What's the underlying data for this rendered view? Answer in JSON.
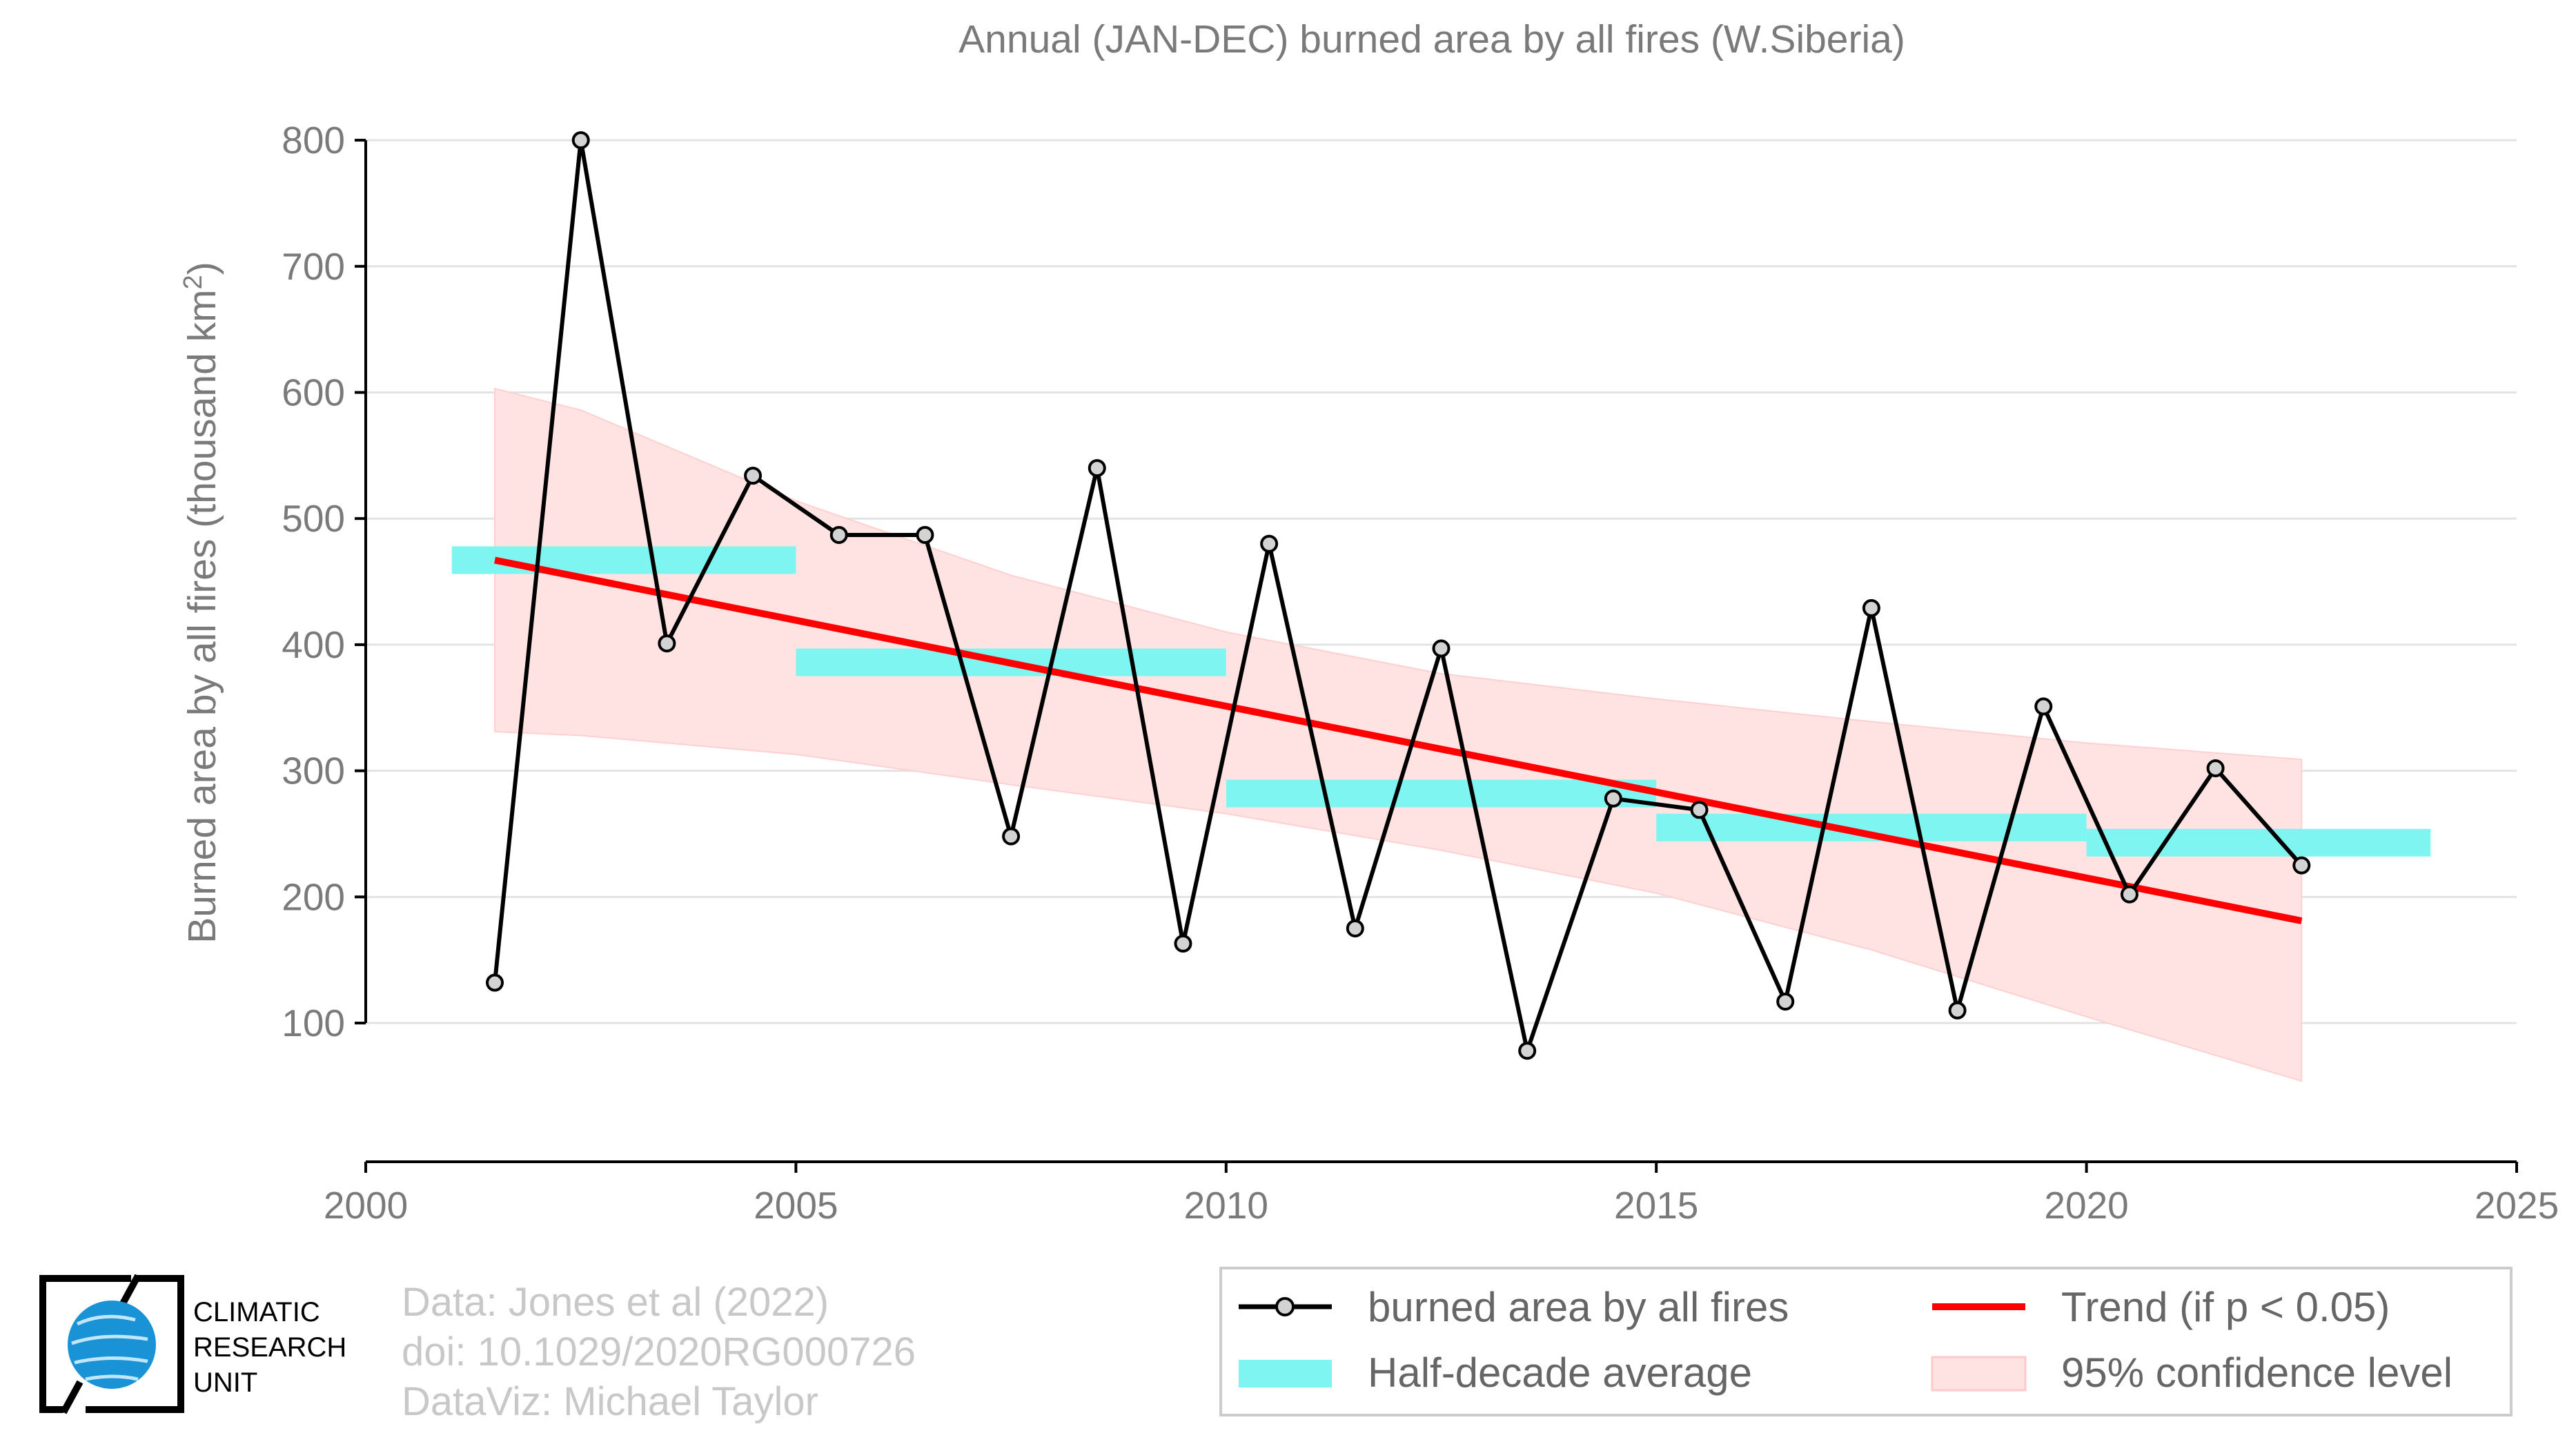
{
  "chart_data": {
    "type": "line",
    "title": "Annual (JAN-DEC) burned area by all fires (W.Siberia)",
    "ylabel_main": "Burned area by all fires (thousand km",
    "ylabel_sup": "2",
    "ylabel_close": ")",
    "xlabel": "",
    "xlim": [
      2000,
      2025
    ],
    "ylim": [
      -10,
      840
    ],
    "x_ticks": [
      2000,
      2005,
      2010,
      2015,
      2020,
      2025
    ],
    "y_ticks": [
      100,
      200,
      300,
      400,
      500,
      600,
      700,
      800
    ],
    "grid": "horizontal",
    "x": [
      2001.5,
      2002.5,
      2003.5,
      2004.5,
      2005.5,
      2006.5,
      2007.5,
      2008.5,
      2009.5,
      2010.5,
      2011.5,
      2012.5,
      2013.5,
      2014.5,
      2015.5,
      2016.5,
      2017.5,
      2018.5,
      2019.5,
      2020.5,
      2021.5,
      2022.5
    ],
    "series": [
      {
        "name": "burned area by all fires",
        "color": "#000000",
        "marker_fill": "#d3d3d3",
        "values": [
          132,
          800,
          401,
          534,
          487,
          487,
          248,
          540,
          163,
          480,
          175,
          397,
          78,
          278,
          269,
          117,
          429,
          110,
          351,
          202,
          302,
          225
        ]
      }
    ],
    "half_decade_average": {
      "name": "Half-decade average",
      "color": "#7ff5f2",
      "segments": [
        {
          "x_start": 2001,
          "x_end": 2005,
          "value": 467
        },
        {
          "x_start": 2005,
          "x_end": 2010,
          "value": 386
        },
        {
          "x_start": 2010,
          "x_end": 2015,
          "value": 282
        },
        {
          "x_start": 2015,
          "x_end": 2020,
          "value": 255
        },
        {
          "x_start": 2020,
          "x_end": 2024,
          "value": 243
        }
      ]
    },
    "trend": {
      "name": "Trend (if p < 0.05)",
      "color": "#ff0000",
      "x": [
        2001.5,
        2022.5
      ],
      "y": [
        467,
        181
      ]
    },
    "confidence_band": {
      "name": "95% confidence level",
      "color": "#ffe3e3",
      "x": [
        2001.5,
        2002.5,
        2005,
        2007.5,
        2010,
        2012.5,
        2015,
        2017.5,
        2020,
        2022.5
      ],
      "upper": [
        603,
        586,
        514,
        455,
        410,
        377,
        357,
        339,
        322,
        309
      ],
      "lower": [
        331,
        328,
        313,
        289,
        266,
        237,
        203,
        158,
        105,
        54
      ]
    },
    "legend_position": "bottom-right"
  },
  "footer": {
    "credits": [
      "Data: Jones et al (2022)",
      "doi: 10.1029/2020RG000726",
      "DataViz: Michael Taylor"
    ],
    "logo_text": [
      "CLIMATIC",
      "RESEARCH",
      "UNIT"
    ],
    "logo_icon": "globe-icon"
  },
  "colors": {
    "text_gray": "#7a7a7a",
    "credit_gray": "#c8c8c8",
    "logo_blue": "#1a93d6"
  }
}
